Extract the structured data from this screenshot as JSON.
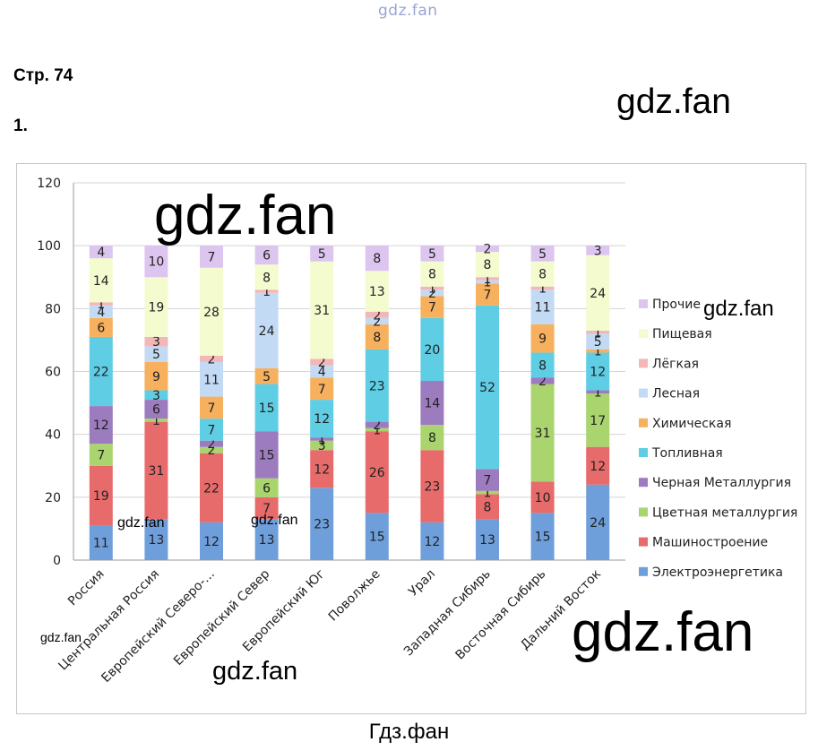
{
  "site_header": "gdz.fan",
  "page_label": "Стр. 74",
  "task_number": "1.",
  "watermarks": [
    "gdz.fan",
    "gdz.fan",
    "gdz.fan",
    "gdz.fan",
    "gdz.fan",
    "gdz.fan",
    "gdz.fan",
    "gdz.fan"
  ],
  "footer": "Гдз.фан",
  "chart_data": {
    "type": "bar",
    "stacked": true,
    "title": "",
    "xlabel": "",
    "ylabel": "",
    "ylim": [
      0,
      120
    ],
    "yticks": [
      0,
      20,
      40,
      60,
      80,
      100,
      120
    ],
    "grid": true,
    "legend_position": "right",
    "categories": [
      "Россия",
      "Центральная Россия",
      "Европейский Северо-...",
      "Европейский Север",
      "Европейский Юг",
      "Поволжье",
      "Урал",
      "Западная Сибирь",
      "Восточная Сибирь",
      "Дальний Восток"
    ],
    "series": [
      {
        "name": "Электроэнергетика",
        "color": "#6f9fdb",
        "values": [
          11,
          13,
          12,
          13,
          23,
          15,
          12,
          13,
          15,
          24
        ]
      },
      {
        "name": "Машиностроение",
        "color": "#e86b6b",
        "values": [
          19,
          31,
          22,
          7,
          12,
          26,
          23,
          8,
          10,
          12
        ]
      },
      {
        "name": "Цветная металлургия",
        "color": "#a9d46e",
        "values": [
          7,
          1,
          2,
          6,
          3,
          1,
          8,
          1,
          31,
          17
        ]
      },
      {
        "name": "Черная Металлургия",
        "color": "#9d7bbf",
        "values": [
          12,
          6,
          2,
          15,
          1,
          2,
          14,
          7,
          2,
          1
        ]
      },
      {
        "name": "Топливная",
        "color": "#5fcde4",
        "values": [
          22,
          3,
          7,
          15,
          12,
          23,
          20,
          52,
          8,
          12
        ]
      },
      {
        "name": "Химическая",
        "color": "#f6b05e",
        "values": [
          6,
          9,
          7,
          5,
          7,
          8,
          7,
          7,
          9,
          1
        ]
      },
      {
        "name": "Лесная",
        "color": "#c3daf5",
        "values": [
          4,
          5,
          11,
          24,
          4,
          2,
          2,
          1,
          11,
          5
        ]
      },
      {
        "name": "Лёгкая",
        "color": "#f4b7b7",
        "values": [
          1,
          3,
          2,
          1,
          2,
          2,
          1,
          1,
          1,
          1
        ]
      },
      {
        "name": "Пищевая",
        "color": "#f3fbcf",
        "values": [
          14,
          19,
          28,
          8,
          31,
          13,
          8,
          8,
          8,
          24
        ]
      },
      {
        "name": "Прочие",
        "color": "#dcc5ee",
        "values": [
          4,
          10,
          7,
          6,
          5,
          8,
          5,
          2,
          5,
          3
        ]
      }
    ]
  }
}
